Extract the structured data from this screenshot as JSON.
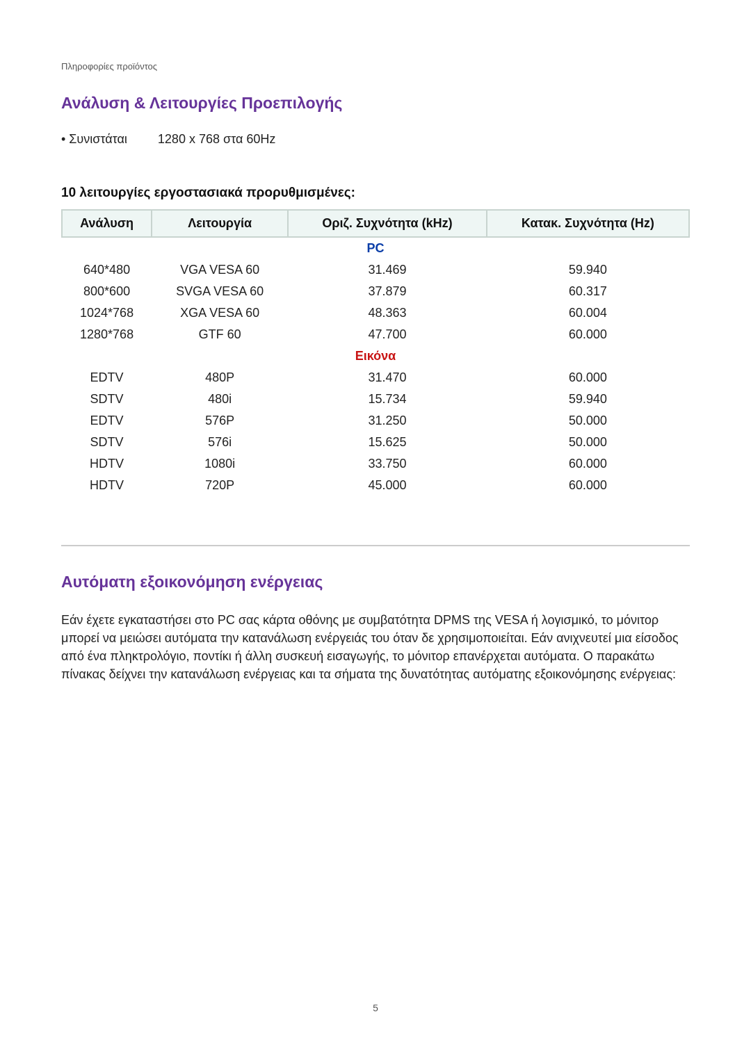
{
  "breadcrumb": "Πληροφορίες προϊόντος",
  "section1": {
    "title": "Ανάλυση & Λειτουργίες Προεπιλογής",
    "recommend_label": "• Συνιστάται",
    "recommend_value": "1280 x 768 στα 60Hz"
  },
  "table": {
    "caption": "10 λειτουργίες εργοστασιακά προρυθμισμένες:",
    "headers": [
      "Ανάλυση",
      "Λειτουργία",
      "Οριζ. Συχνότητα (kHz)",
      "Κατακ. Συχνότητα (Hz)"
    ],
    "header_bg": "#eef6f4",
    "header_border": "#c8d4cf",
    "groups": [
      {
        "label": "PC",
        "color": "#0b3ea8",
        "rows": [
          [
            "640*480",
            "VGA VESA 60",
            "31.469",
            "59.940"
          ],
          [
            "800*600",
            "SVGA VESA 60",
            "37.879",
            "60.317"
          ],
          [
            "1024*768",
            "XGA VESA 60",
            "48.363",
            "60.004"
          ],
          [
            "1280*768",
            "GTF 60",
            "47.700",
            "60.000"
          ]
        ]
      },
      {
        "label": "Εικόνα",
        "color": "#c81414",
        "rows": [
          [
            "EDTV",
            "480P",
            "31.470",
            "60.000"
          ],
          [
            "SDTV",
            "480i",
            "15.734",
            "59.940"
          ],
          [
            "EDTV",
            "576P",
            "31.250",
            "50.000"
          ],
          [
            "SDTV",
            "576i",
            "15.625",
            "50.000"
          ],
          [
            "HDTV",
            "1080i",
            "33.750",
            "60.000"
          ],
          [
            "HDTV",
            "720P",
            "45.000",
            "60.000"
          ]
        ]
      }
    ]
  },
  "section2": {
    "title": "Αυτόματη εξοικονόμηση ενέργειας",
    "body": "Εάν έχετε εγκαταστήσει στο PC σας κάρτα οθόνης με συμβατότητα DPMS της VESA ή λογισμικό, το μόνιτορ μπορεί να μειώσει αυτόματα την κατανάλωση ενέργειάς του όταν δε χρησιμοποιείται. Εάν ανιχνευτεί μια είσοδος από ένα πληκτρολόγιο, ποντίκι ή άλλη συσκευή εισαγωγής, το μόνιτορ επανέρχεται αυτόματα. Ο παρακάτω πίνακας δείχνει την κατανάλωση ενέργειας και τα σήματα της δυνατότητας αυτόματης εξοικονόμησης ενέργειας:"
  },
  "colors": {
    "heading_purple": "#663399",
    "text": "#222222",
    "rule": "#cccccc"
  },
  "page_number": "5"
}
